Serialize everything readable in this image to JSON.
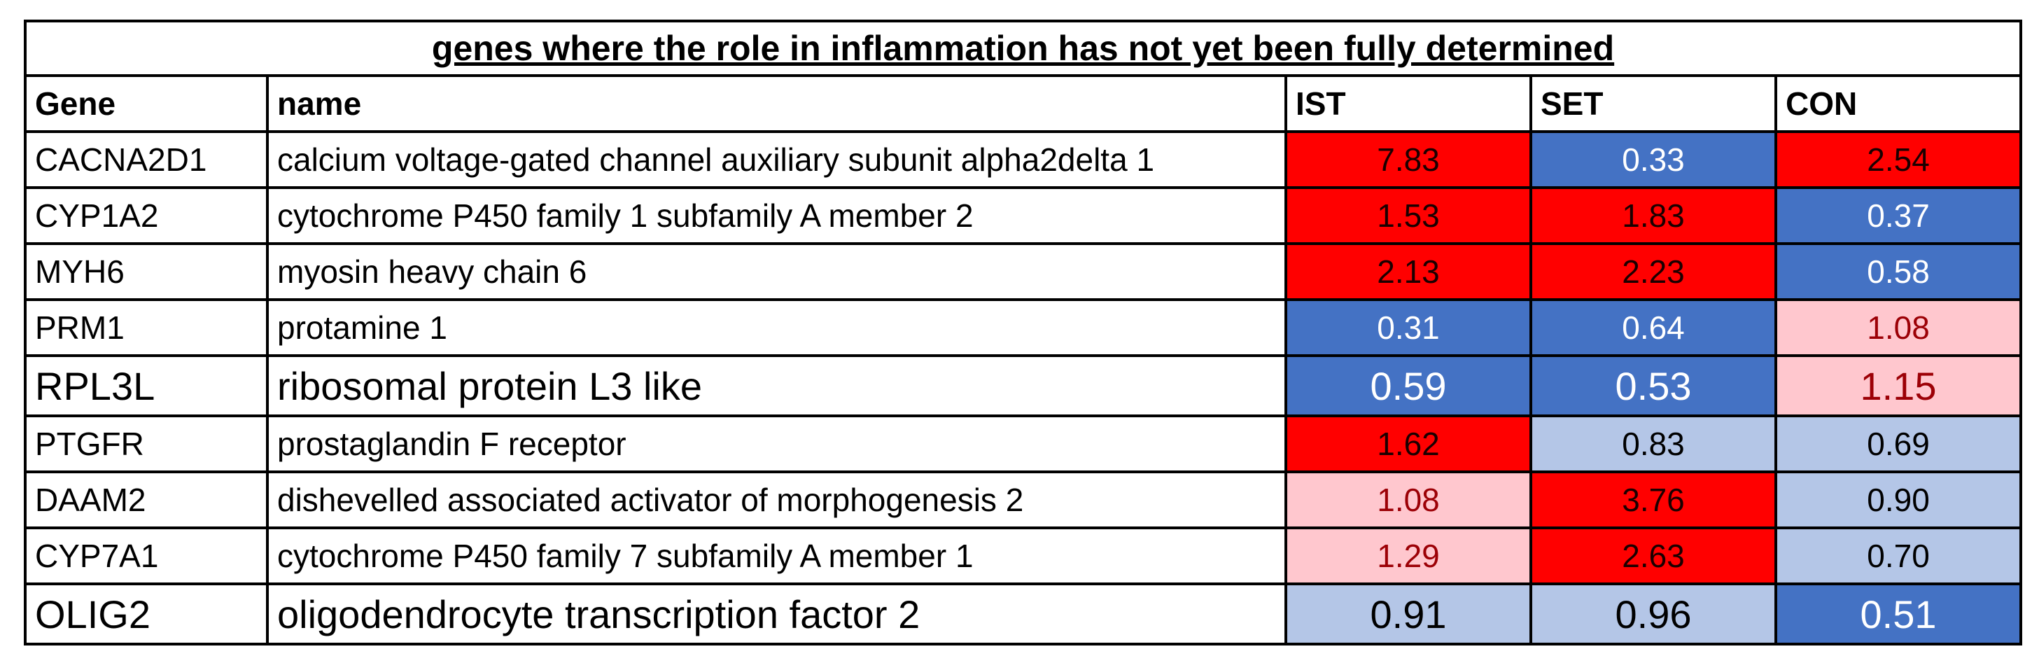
{
  "title": "genes where the role in inflammation has not yet been fully determined",
  "headers": [
    "Gene",
    "name",
    "IST",
    "SET",
    "CON"
  ],
  "palette": {
    "high": {
      "bg": "#ff0000",
      "fg": "#1a0000"
    },
    "mild_high": {
      "bg": "#ffc7ce",
      "fg": "#9c0006"
    },
    "low": {
      "bg": "#4472c4",
      "fg": "#ffffff"
    },
    "mild_low": {
      "bg": "#b4c6e7",
      "fg": "#000000"
    }
  },
  "rows": [
    {
      "gene": "CACNA2D1",
      "name": "calcium voltage-gated channel auxiliary subunit alpha2delta 1",
      "big": false,
      "values": [
        {
          "v": "7.83",
          "c": "high"
        },
        {
          "v": "0.33",
          "c": "low"
        },
        {
          "v": "2.54",
          "c": "high"
        }
      ]
    },
    {
      "gene": "CYP1A2",
      "name": "cytochrome P450 family 1 subfamily A member 2",
      "big": false,
      "values": [
        {
          "v": "1.53",
          "c": "high"
        },
        {
          "v": "1.83",
          "c": "high"
        },
        {
          "v": "0.37",
          "c": "low"
        }
      ]
    },
    {
      "gene": "MYH6",
      "name": "myosin heavy chain 6",
      "big": false,
      "values": [
        {
          "v": "2.13",
          "c": "high"
        },
        {
          "v": "2.23",
          "c": "high"
        },
        {
          "v": "0.58",
          "c": "low"
        }
      ]
    },
    {
      "gene": "PRM1",
      "name": "protamine 1",
      "big": false,
      "values": [
        {
          "v": "0.31",
          "c": "low"
        },
        {
          "v": "0.64",
          "c": "low"
        },
        {
          "v": "1.08",
          "c": "mild_high"
        }
      ]
    },
    {
      "gene": "RPL3L",
      "name": "ribosomal protein L3 like",
      "big": true,
      "values": [
        {
          "v": "0.59",
          "c": "low"
        },
        {
          "v": "0.53",
          "c": "low"
        },
        {
          "v": "1.15",
          "c": "mild_high"
        }
      ]
    },
    {
      "gene": "PTGFR",
      "name": "prostaglandin F receptor",
      "big": false,
      "values": [
        {
          "v": "1.62",
          "c": "high"
        },
        {
          "v": "0.83",
          "c": "mild_low"
        },
        {
          "v": "0.69",
          "c": "mild_low"
        }
      ]
    },
    {
      "gene": "DAAM2",
      "name": "dishevelled associated activator of morphogenesis 2",
      "big": false,
      "values": [
        {
          "v": "1.08",
          "c": "mild_high"
        },
        {
          "v": "3.76",
          "c": "high"
        },
        {
          "v": "0.90",
          "c": "mild_low"
        }
      ]
    },
    {
      "gene": "CYP7A1",
      "name": "cytochrome P450 family 7 subfamily A member 1",
      "big": false,
      "values": [
        {
          "v": "1.29",
          "c": "mild_high"
        },
        {
          "v": "2.63",
          "c": "high"
        },
        {
          "v": "0.70",
          "c": "mild_low"
        }
      ]
    },
    {
      "gene": "OLIG2",
      "name": "oligodendrocyte transcription factor 2",
      "big": true,
      "values": [
        {
          "v": "0.91",
          "c": "mild_low"
        },
        {
          "v": "0.96",
          "c": "mild_low"
        },
        {
          "v": "0.51",
          "c": "low"
        }
      ]
    }
  ]
}
